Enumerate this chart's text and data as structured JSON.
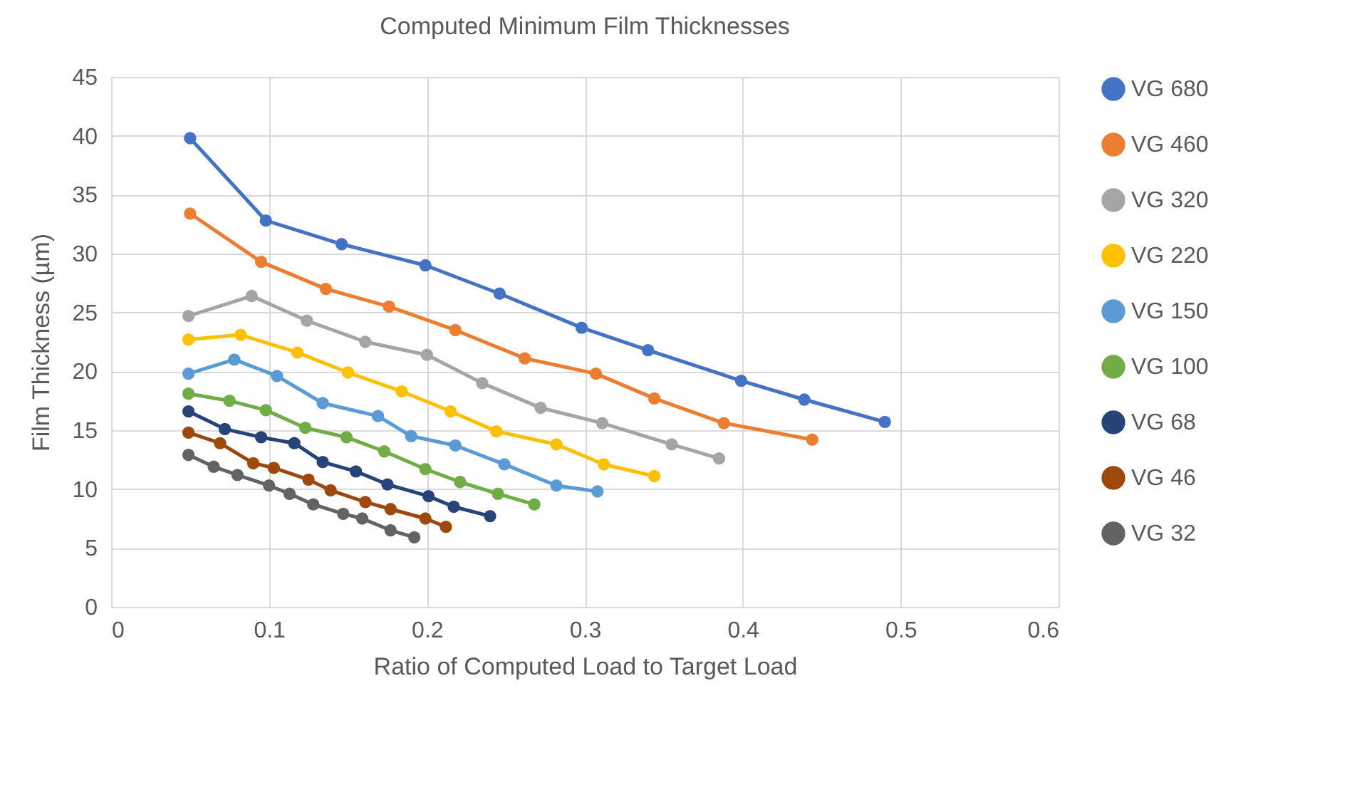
{
  "chart_data": {
    "type": "line",
    "title": "Computed Minimum Film Thicknesses",
    "xlabel": "Ratio of Computed Load to Target Load",
    "ylabel": "Film Thickness (µm)",
    "xlim": [
      0,
      0.6
    ],
    "xticks": [
      0,
      0.1,
      0.2,
      0.3,
      0.4,
      0.5,
      0.6
    ],
    "ylim": [
      0,
      45
    ],
    "yticks": [
      0,
      5,
      10,
      15,
      20,
      25,
      30,
      35,
      40,
      45
    ],
    "grid": true,
    "legend": "right",
    "marker": "circle",
    "line_style": "solid",
    "series": [
      {
        "name": "VG 680",
        "color": "#4472c4",
        "x": [
          0.05,
          0.098,
          0.146,
          0.199,
          0.246,
          0.298,
          0.34,
          0.399,
          0.439,
          0.49
        ],
        "values": [
          39.8,
          32.8,
          30.8,
          29.0,
          26.6,
          23.7,
          21.8,
          19.2,
          17.6,
          15.7
        ]
      },
      {
        "name": "VG 460",
        "color": "#ed7d31",
        "x": [
          0.05,
          0.095,
          0.136,
          0.176,
          0.218,
          0.262,
          0.307,
          0.344,
          0.388,
          0.444
        ],
        "values": [
          33.4,
          29.3,
          27.0,
          25.5,
          23.5,
          21.1,
          19.8,
          17.7,
          15.6,
          14.2
        ]
      },
      {
        "name": "VG 320",
        "color": "#a5a5a5",
        "x": [
          0.049,
          0.089,
          0.124,
          0.161,
          0.2,
          0.235,
          0.272,
          0.311,
          0.355,
          0.385
        ],
        "values": [
          24.7,
          26.4,
          24.3,
          22.5,
          21.4,
          19.0,
          16.9,
          15.6,
          13.8,
          12.6
        ]
      },
      {
        "name": "VG 220",
        "color": "#ffc000",
        "x": [
          0.049,
          0.082,
          0.118,
          0.15,
          0.184,
          0.215,
          0.244,
          0.282,
          0.312,
          0.344
        ],
        "values": [
          22.7,
          23.1,
          21.6,
          19.9,
          18.3,
          16.6,
          14.9,
          13.8,
          12.1,
          11.1
        ]
      },
      {
        "name": "VG 150",
        "color": "#5b9bd5",
        "x": [
          0.049,
          0.078,
          0.105,
          0.134,
          0.169,
          0.19,
          0.218,
          0.249,
          0.282,
          0.308
        ],
        "values": [
          19.8,
          21.0,
          19.6,
          17.3,
          16.2,
          14.5,
          13.7,
          12.1,
          10.3,
          9.8
        ]
      },
      {
        "name": "VG 100",
        "color": "#70ad47",
        "x": [
          0.049,
          0.075,
          0.098,
          0.123,
          0.149,
          0.173,
          0.199,
          0.221,
          0.245,
          0.268
        ],
        "values": [
          18.1,
          17.5,
          16.7,
          15.2,
          14.4,
          13.2,
          11.7,
          10.6,
          9.6,
          8.7
        ]
      },
      {
        "name": "VG 68",
        "color": "#264478",
        "x": [
          0.049,
          0.072,
          0.095,
          0.116,
          0.134,
          0.155,
          0.175,
          0.201,
          0.217,
          0.24
        ],
        "values": [
          16.6,
          15.1,
          14.4,
          13.9,
          12.3,
          11.5,
          10.4,
          9.4,
          8.5,
          7.7
        ]
      },
      {
        "name": "VG 46",
        "color": "#9e480e",
        "x": [
          0.049,
          0.069,
          0.09,
          0.103,
          0.125,
          0.139,
          0.161,
          0.177,
          0.199,
          0.212
        ],
        "values": [
          14.8,
          13.9,
          12.2,
          11.8,
          10.8,
          9.9,
          8.9,
          8.3,
          7.5,
          6.8
        ]
      },
      {
        "name": "VG 32",
        "color": "#636363",
        "x": [
          0.049,
          0.065,
          0.08,
          0.1,
          0.113,
          0.128,
          0.147,
          0.159,
          0.177,
          0.192
        ],
        "values": [
          12.9,
          11.9,
          11.2,
          10.3,
          9.6,
          8.7,
          7.9,
          7.5,
          6.5,
          5.9
        ]
      }
    ]
  }
}
